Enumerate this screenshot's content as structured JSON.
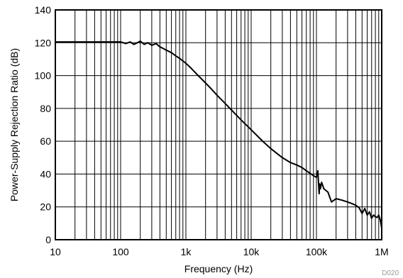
{
  "chart_data": {
    "type": "line",
    "title": "",
    "xlabel": "Frequency (Hz)",
    "ylabel": "Power-Supply Rejection Ratio (dB)",
    "x_scale": "log",
    "xlim": [
      10,
      1000000
    ],
    "ylim": [
      0,
      140
    ],
    "grid": true,
    "x_ticks": [
      10,
      100,
      1000,
      10000,
      100000,
      1000000
    ],
    "x_tick_labels": [
      "10",
      "100",
      "1k",
      "10k",
      "100k",
      "1M"
    ],
    "y_ticks": [
      0,
      20,
      40,
      60,
      80,
      100,
      120,
      140
    ],
    "y_tick_labels": [
      "0",
      "20",
      "40",
      "60",
      "80",
      "100",
      "120",
      "140"
    ],
    "code": "D020",
    "colors": {
      "line": "#000000",
      "grid": "#000000",
      "code": "#9a9a9a"
    },
    "series": [
      {
        "x": [
          10,
          20,
          50,
          100,
          120,
          140,
          160,
          180,
          200,
          230,
          260,
          300,
          350,
          400,
          450,
          500,
          600,
          700,
          800,
          1000,
          1200,
          1500,
          2000,
          2500,
          3000,
          4000,
          5000,
          7000,
          10000,
          15000,
          20000,
          30000,
          40000,
          50000,
          60000,
          70000,
          80000,
          90000,
          100000,
          105000,
          110000,
          112000,
          115000,
          120000,
          130000,
          150000,
          170000,
          200000,
          250000,
          300000,
          350000,
          400000,
          450000,
          500000,
          550000,
          600000,
          650000,
          700000,
          750000,
          800000,
          850000,
          900000,
          950000,
          1000000
        ],
        "y": [
          120.5,
          120.5,
          120.5,
          120.5,
          119.5,
          120.5,
          119.0,
          120.0,
          121.0,
          119.0,
          120.0,
          118.5,
          119.5,
          117.5,
          116.5,
          115.5,
          114.0,
          112.0,
          110.5,
          107.5,
          104.5,
          100.5,
          95.5,
          91.5,
          88.0,
          83.0,
          79.0,
          73.0,
          67.0,
          60.0,
          55.5,
          50.0,
          47.0,
          45.5,
          44.0,
          42.0,
          40.5,
          39.0,
          38.0,
          42.0,
          28.0,
          34.0,
          31.0,
          35.0,
          31.0,
          29.0,
          23.0,
          25.0,
          24.0,
          23.0,
          22.0,
          21.0,
          19.5,
          16.0,
          19.0,
          15.0,
          17.0,
          13.0,
          15.0,
          14.0,
          13.5,
          15.0,
          12.0,
          7.0
        ]
      }
    ]
  }
}
